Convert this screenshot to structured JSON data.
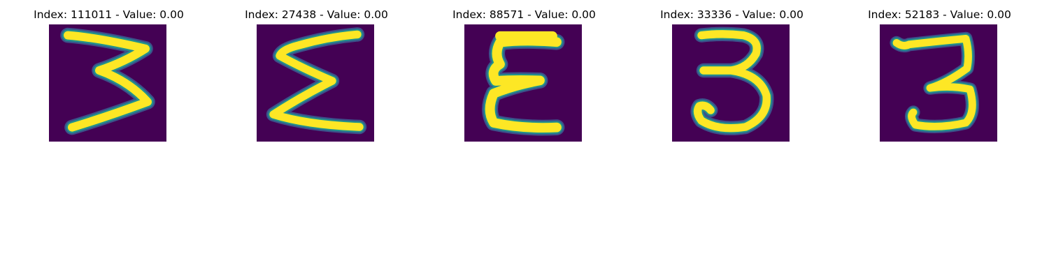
{
  "figure": {
    "panels": [
      {
        "title": "Index: 111011 - Value: 0.00",
        "glyph": "three-like-stroke"
      },
      {
        "title": "Index: 27438 - Value: 0.00",
        "glyph": "sigma-like-stroke"
      },
      {
        "title": "Index: 88571 - Value: 0.00",
        "glyph": "epsilon-like-stroke"
      },
      {
        "title": "Index: 33336 - Value: 0.00",
        "glyph": "three-like-stroke"
      },
      {
        "title": "Index: 52183 - Value: 0.00",
        "glyph": "three-like-stroke"
      }
    ],
    "colors": {
      "background": "#440154",
      "foreground": "#fde725",
      "edge": "#21918c",
      "halo": "#3b528b"
    }
  }
}
